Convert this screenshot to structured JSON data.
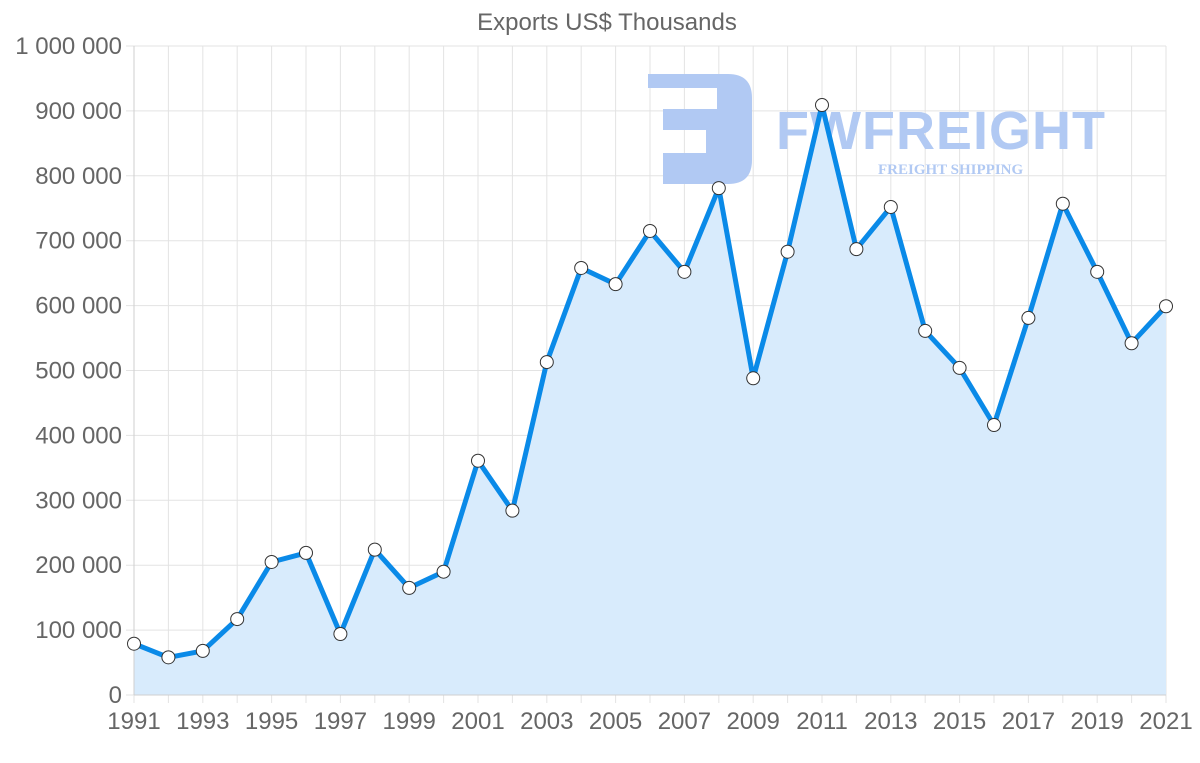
{
  "chart_data": {
    "type": "line",
    "title": "Exports US$ Thousands",
    "xlabel": "",
    "ylabel": "",
    "x": [
      1991,
      1992,
      1993,
      1994,
      1995,
      1996,
      1997,
      1998,
      1999,
      2000,
      2001,
      2002,
      2003,
      2004,
      2005,
      2006,
      2007,
      2008,
      2009,
      2010,
      2011,
      2012,
      2013,
      2014,
      2015,
      2016,
      2017,
      2018,
      2019,
      2020,
      2021
    ],
    "series": [
      {
        "name": "Exports US$ Thousands",
        "values": [
          79000,
          58000,
          68000,
          117000,
          205000,
          219000,
          94000,
          224000,
          165000,
          190000,
          361000,
          284000,
          513000,
          658000,
          633000,
          715000,
          652000,
          781000,
          488000,
          683000,
          909000,
          687000,
          752000,
          561000,
          504000,
          416000,
          581000,
          757000,
          652000,
          542000,
          599000
        ],
        "line_color": "#0a8ae8",
        "fill_color": "#d8ebfc"
      }
    ],
    "ylim": [
      0,
      1000000
    ],
    "y_ticks": [
      "0",
      "100 000",
      "200 000",
      "300 000",
      "400 000",
      "500 000",
      "600 000",
      "700 000",
      "800 000",
      "900 000",
      "1 000 000"
    ],
    "x_tick_labels": [
      "1991",
      "1993",
      "1995",
      "1997",
      "1999",
      "2001",
      "2003",
      "2005",
      "2007",
      "2009",
      "2011",
      "2013",
      "2015",
      "2017",
      "2019",
      "2021"
    ],
    "grid": true,
    "legend": "none",
    "area_fill": true
  },
  "watermark": {
    "brand": "FWFREIGHT",
    "tagline": "FREIGHT SHIPPING",
    "color": "#b1c9f3"
  }
}
